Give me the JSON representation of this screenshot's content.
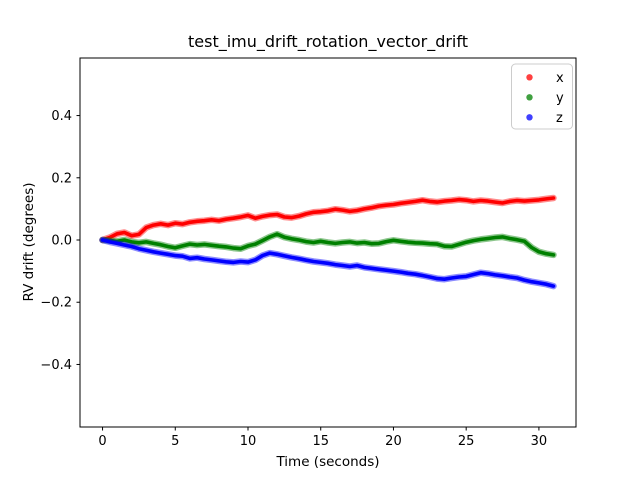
{
  "chart_data": {
    "type": "scatter",
    "title": "test_imu_drift_rotation_vector_drift",
    "xlabel": "Time (seconds)",
    "ylabel": "RV drift (degrees)",
    "xlim": [
      -1.55,
      32.55
    ],
    "ylim": [
      -0.601,
      0.585
    ],
    "xticks": [
      0,
      5,
      10,
      15,
      20,
      25,
      30
    ],
    "yticks": [
      -0.4,
      -0.2,
      0.0,
      0.2,
      0.4
    ],
    "grid": false,
    "legend": {
      "position": "upper-right"
    },
    "t": [
      0,
      0.5,
      1,
      1.5,
      2,
      2.5,
      3,
      3.5,
      4,
      4.5,
      5,
      5.5,
      6,
      6.5,
      7,
      7.5,
      8,
      8.5,
      9,
      9.5,
      10,
      10.5,
      11,
      11.5,
      12,
      12.5,
      13,
      13.5,
      14,
      14.5,
      15,
      15.5,
      16,
      16.5,
      17,
      17.5,
      18,
      18.5,
      19,
      19.5,
      20,
      20.5,
      21,
      21.5,
      22,
      22.5,
      23,
      23.5,
      24,
      24.5,
      25,
      25.5,
      26,
      26.5,
      27,
      27.5,
      28,
      28.5,
      29,
      29.5,
      30,
      30.5,
      31
    ],
    "series": [
      {
        "name": "x",
        "color": "#ff0000",
        "values": [
          0.0,
          0.008,
          0.02,
          0.024,
          0.014,
          0.018,
          0.04,
          0.048,
          0.052,
          0.048,
          0.054,
          0.051,
          0.057,
          0.06,
          0.062,
          0.065,
          0.062,
          0.067,
          0.07,
          0.074,
          0.079,
          0.07,
          0.076,
          0.08,
          0.082,
          0.074,
          0.072,
          0.077,
          0.084,
          0.089,
          0.091,
          0.094,
          0.099,
          0.096,
          0.092,
          0.095,
          0.1,
          0.104,
          0.109,
          0.112,
          0.114,
          0.118,
          0.121,
          0.124,
          0.128,
          0.124,
          0.122,
          0.125,
          0.127,
          0.13,
          0.128,
          0.124,
          0.127,
          0.125,
          0.122,
          0.119,
          0.124,
          0.127,
          0.125,
          0.127,
          0.129,
          0.132,
          0.135
        ]
      },
      {
        "name": "y",
        "color": "#008000",
        "values": [
          0.0,
          -0.002,
          -0.004,
          0.0,
          -0.006,
          -0.009,
          -0.006,
          -0.011,
          -0.015,
          -0.021,
          -0.025,
          -0.019,
          -0.013,
          -0.016,
          -0.014,
          -0.017,
          -0.02,
          -0.022,
          -0.026,
          -0.028,
          -0.019,
          -0.013,
          -0.002,
          0.01,
          0.019,
          0.009,
          0.004,
          0.0,
          -0.005,
          -0.008,
          -0.004,
          -0.008,
          -0.011,
          -0.008,
          -0.006,
          -0.01,
          -0.008,
          -0.012,
          -0.011,
          -0.005,
          -0.001,
          -0.004,
          -0.007,
          -0.009,
          -0.01,
          -0.012,
          -0.013,
          -0.02,
          -0.021,
          -0.014,
          -0.007,
          -0.002,
          0.002,
          0.005,
          0.008,
          0.01,
          0.005,
          0.001,
          -0.004,
          -0.024,
          -0.038,
          -0.044,
          -0.048
        ]
      },
      {
        "name": "z",
        "color": "#0000ff",
        "values": [
          0.0,
          -0.006,
          -0.011,
          -0.016,
          -0.021,
          -0.028,
          -0.033,
          -0.038,
          -0.042,
          -0.046,
          -0.05,
          -0.052,
          -0.059,
          -0.057,
          -0.061,
          -0.064,
          -0.067,
          -0.07,
          -0.072,
          -0.069,
          -0.071,
          -0.064,
          -0.05,
          -0.042,
          -0.046,
          -0.051,
          -0.056,
          -0.06,
          -0.065,
          -0.069,
          -0.072,
          -0.075,
          -0.079,
          -0.082,
          -0.085,
          -0.082,
          -0.088,
          -0.091,
          -0.094,
          -0.097,
          -0.1,
          -0.103,
          -0.107,
          -0.11,
          -0.114,
          -0.119,
          -0.124,
          -0.126,
          -0.122,
          -0.119,
          -0.117,
          -0.111,
          -0.105,
          -0.108,
          -0.112,
          -0.115,
          -0.119,
          -0.122,
          -0.129,
          -0.134,
          -0.138,
          -0.142,
          -0.148
        ]
      }
    ],
    "colors": {
      "axis": "#000000",
      "legend_border": "#cccccc",
      "background": "#ffffff"
    }
  }
}
